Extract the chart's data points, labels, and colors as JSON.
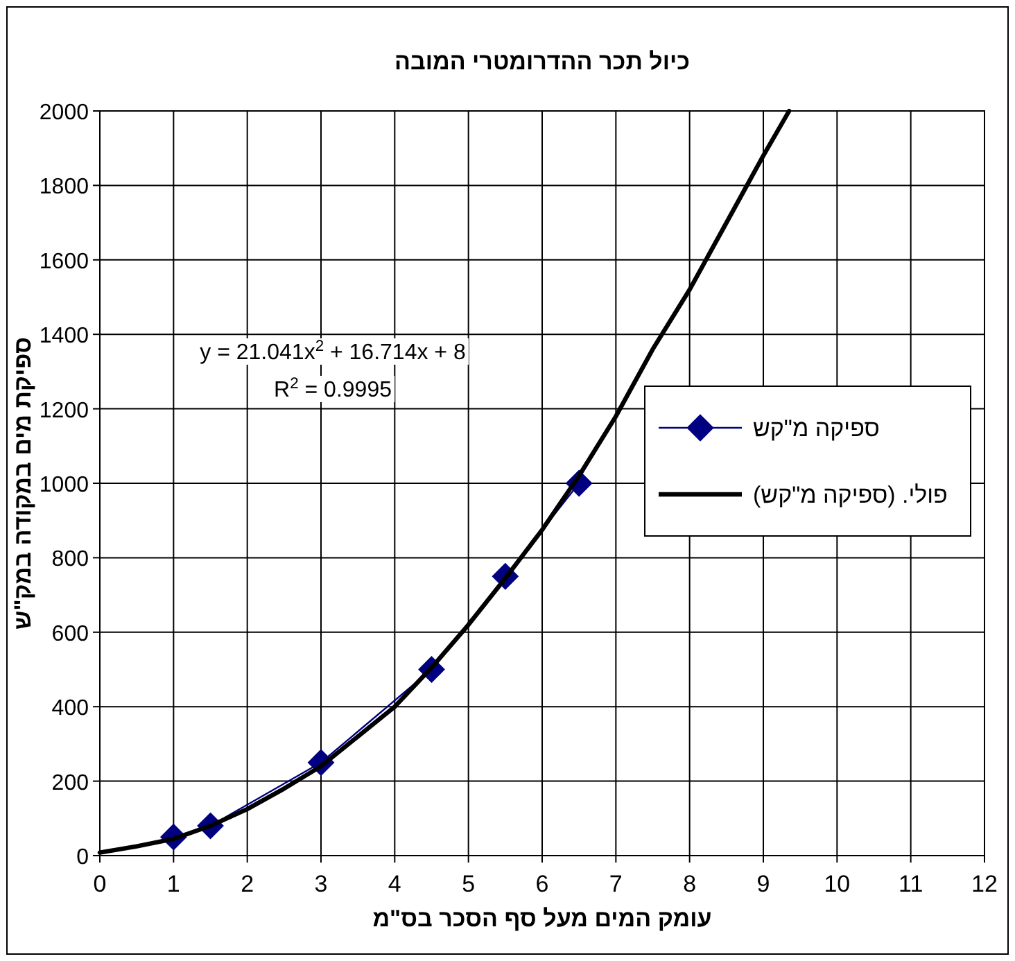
{
  "chart_data": {
    "type": "line",
    "title": "כיול תכר ההדרומטרי המובה",
    "xlabel": "עומק המים מעל סף הסכר בס\"מ",
    "ylabel": "ספיקת מים במקודה במק\"ש",
    "xlim": [
      0,
      12
    ],
    "xticks": [
      0,
      1,
      2,
      3,
      4,
      5,
      6,
      7,
      8,
      9,
      10,
      11,
      12
    ],
    "ylim": [
      0,
      2000
    ],
    "yticks": [
      0,
      200,
      400,
      600,
      800,
      1000,
      1200,
      1400,
      1600,
      1800,
      2000
    ],
    "grid": true,
    "legend": "right",
    "annotations": [
      "y = 21.041x$^{2}$ + 16.714x + 8",
      "R$^{2}$ = 0.9995"
    ],
    "series": [
      {
        "name": "ספיקה מ\"קש",
        "marker": "diamond",
        "color": "#000080",
        "x": [
          1,
          1.5,
          3,
          4.5,
          5.5,
          6.5
        ],
        "values": [
          50,
          80,
          250,
          500,
          750,
          1000
        ]
      },
      {
        "name": "פולי. (ספיקה מ\"קש)",
        "marker": "none",
        "color": "#000000",
        "x": [
          0,
          0.5,
          1,
          1.5,
          2,
          2.5,
          3,
          3.5,
          4,
          4.5,
          5,
          5.5,
          6,
          6.5,
          7,
          7.5,
          8,
          8.5,
          9,
          9.35
        ],
        "values": [
          8,
          25,
          45,
          80,
          125,
          180,
          240,
          320,
          400,
          505,
          620,
          745,
          875,
          1020,
          1180,
          1360,
          1520,
          1700,
          1880,
          2000
        ]
      }
    ]
  }
}
